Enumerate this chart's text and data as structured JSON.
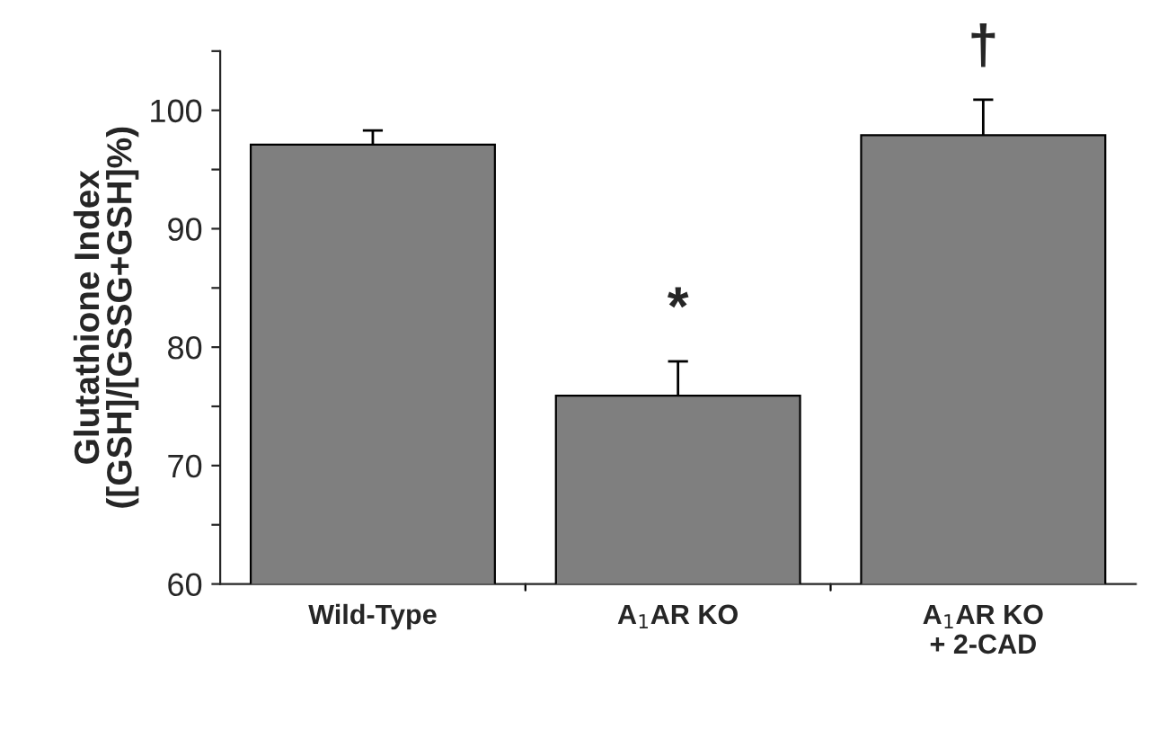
{
  "chart_data": {
    "type": "bar",
    "ylabel": "Glutathione Index\n([GSH]/[GSSG+GSH]%)",
    "categories": [
      "Wild-Type",
      "A$_{1}$AR KO",
      "A$_{1}$AR KO\n+ 2-CAD"
    ],
    "values": [
      97.1,
      75.9,
      97.9
    ],
    "errors": [
      1.2,
      2.9,
      3.0
    ],
    "value_labels": [
      null,
      "*",
      "†"
    ],
    "color": "#7f7f7f",
    "ylim": [
      60,
      105
    ],
    "yticks": [
      60,
      {
        "value": 65,
        "label": null
      },
      70,
      {
        "value": 75,
        "label": null
      },
      80,
      {
        "value": 85,
        "label": null
      },
      90,
      {
        "value": 95,
        "label": null
      },
      100,
      {
        "value": 105,
        "label": null
      }
    ],
    "grid": false,
    "legend": false
  }
}
